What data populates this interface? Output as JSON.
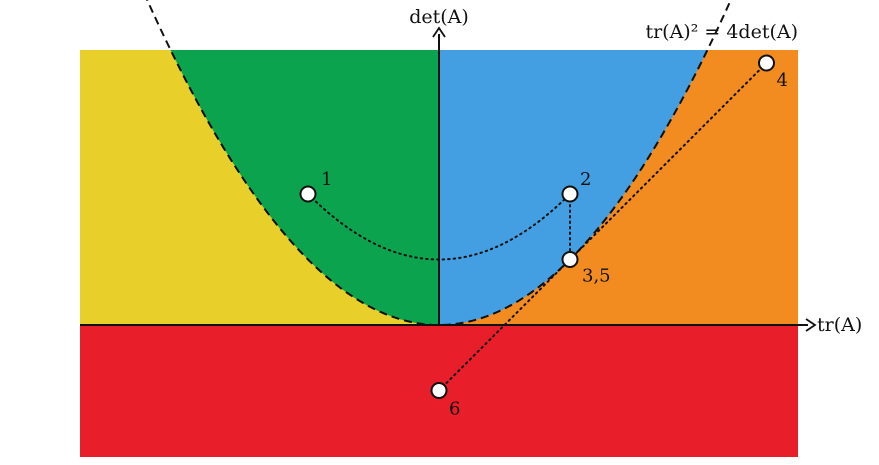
{
  "axes": {
    "x_label": "tr(A)",
    "y_label": "det(A)",
    "parabola_label": "tr(A)² = 4det(A)"
  },
  "regions": {
    "top_left_outer": "#e8cf2a",
    "top_left_inner": "#0ca34f",
    "top_right_inner": "#439fe1",
    "top_right_outer": "#f28b20",
    "bottom": "#e81e2b"
  },
  "points": [
    {
      "id": "p1",
      "label": "1",
      "tr": -2.0,
      "det": 2.0
    },
    {
      "id": "p2",
      "label": "2",
      "tr": 2.0,
      "det": 2.0
    },
    {
      "id": "p35",
      "label": "3,5",
      "tr": 2.0,
      "det": 1.0
    },
    {
      "id": "p4",
      "label": "4",
      "tr": 5.0,
      "det": 4.0
    },
    {
      "id": "p6",
      "label": "6",
      "tr": 0.0,
      "det": -1.0
    }
  ]
}
